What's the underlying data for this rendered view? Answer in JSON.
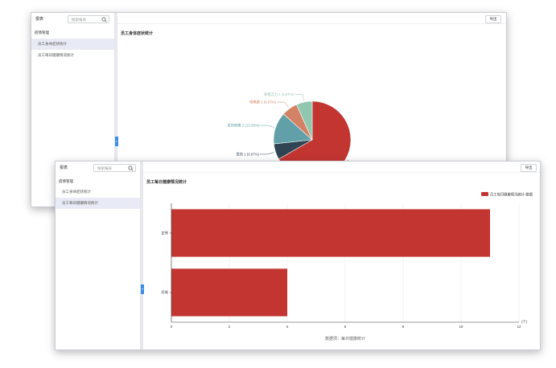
{
  "windows": [
    {
      "sidebar": {
        "title": "报表",
        "search_placeholder": "搜索报表",
        "section": "疫情管理",
        "items": [
          {
            "label": "员工身体症状统计",
            "active": true
          },
          {
            "label": "员工每日健康情况统计",
            "active": false
          }
        ],
        "collapse_glyph": "«"
      },
      "toolbar": {
        "export_label": "导出"
      },
      "chart_title": "员工身体症状统计"
    },
    {
      "sidebar": {
        "title": "报表",
        "search_placeholder": "搜索报表",
        "section": "疫情管理",
        "items": [
          {
            "label": "员工身体症状统计",
            "active": false
          },
          {
            "label": "员工每日健康情况统计",
            "active": true
          }
        ],
        "collapse_glyph": "«"
      },
      "toolbar": {
        "export_label": "导出"
      },
      "chart_title": "员工每日健康情况统计"
    }
  ],
  "chart_data": [
    {
      "type": "pie",
      "title": "员工身体症状统计",
      "slices": [
        {
          "label": "健康良好：无症状",
          "value": 10,
          "percent": "66.67%",
          "color": "#c23531"
        },
        {
          "label": "发热",
          "value": 1,
          "percent": "6.67%",
          "color": "#2f4554"
        },
        {
          "label": "发热咳嗽",
          "value": 2,
          "percent": "13.33%",
          "color": "#61a0a8"
        },
        {
          "label": "咳嗽痰",
          "value": 1,
          "percent": "6.67%",
          "color": "#d48265"
        },
        {
          "label": "咳嗽乏力",
          "value": 1,
          "percent": "6.67%",
          "color": "#91c7ae"
        }
      ]
    },
    {
      "type": "bar",
      "orientation": "horizontal",
      "title": "员工每日健康情况统计",
      "categories": [
        "异常",
        "正常"
      ],
      "series": [
        {
          "name": "员工每日健康情况统计-数据",
          "values": [
            4,
            11
          ],
          "color": "#c23531"
        }
      ],
      "xlim": [
        0,
        12
      ],
      "x_ticks": [
        "0",
        "2",
        "4",
        "6",
        "8",
        "10",
        "12"
      ],
      "x_unit": "(个)",
      "xlabel": "数据项：每日健康统计",
      "legend_position": "top-right",
      "grid": true
    }
  ]
}
